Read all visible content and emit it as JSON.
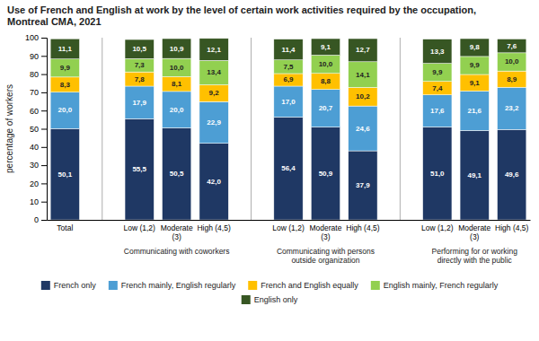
{
  "chart_data": {
    "type": "bar",
    "stacked": true,
    "title": "Use of French and English at work by the level of certain work activities required by the occupation,\nMontreal CMA, 2021",
    "ylabel": "percentage of workers",
    "categories": [
      "Total",
      "Low (1,2)",
      "Moderate\n(3)",
      "High (4,5)",
      "Low (1,2)",
      "Moderate\n(3)",
      "High (4,5)",
      "Low (1,2)",
      "Moderate\n(3)",
      "High (4,5)"
    ],
    "group_labels": [
      "Communicating with coworkers",
      "Communicating with persons\noutside organization",
      "Performing for or working\ndirectly with the public"
    ],
    "series": [
      {
        "name": "French only",
        "color": "#1f3864",
        "values": [
          50.1,
          55.5,
          50.5,
          42.0,
          56.4,
          50.9,
          37.9,
          51.0,
          49.1,
          49.6
        ],
        "value_labels": [
          "50,1",
          "55,5",
          "50,5",
          "42,0",
          "56,4",
          "50,9",
          "37,9",
          "51,0",
          "49,1",
          "49,6"
        ]
      },
      {
        "name": "French mainly, English regularly",
        "color": "#4d9ed4",
        "values": [
          20.0,
          17.9,
          20.0,
          22.9,
          17.0,
          20.7,
          24.6,
          17.6,
          21.6,
          23.2
        ],
        "value_labels": [
          "20,0",
          "17,9",
          "20,0",
          "22,9",
          "17,0",
          "20,7",
          "24,6",
          "17,6",
          "21,6",
          "23,2"
        ]
      },
      {
        "name": "French and English equally",
        "color": "#ffc000",
        "values": [
          8.3,
          7.8,
          8.1,
          9.2,
          6.9,
          8.8,
          10.2,
          7.4,
          9.1,
          8.9
        ],
        "value_labels": [
          "8,3",
          "7,8",
          "8,1",
          "9,2",
          "6,9",
          "8,8",
          "10,2",
          "7,4",
          "9,1",
          "8,9"
        ]
      },
      {
        "name": "English mainly, French regularly",
        "color": "#92d050",
        "values": [
          9.9,
          7.3,
          10.0,
          13.4,
          7.5,
          10.0,
          14.1,
          9.9,
          9.9,
          10.0
        ],
        "value_labels": [
          "9,9",
          "7,3",
          "10,0",
          "13,4",
          "7,5",
          "10,0",
          "14,1",
          "9,9",
          "9,9",
          "10,0"
        ]
      },
      {
        "name": "English only",
        "color": "#375623",
        "values": [
          11.1,
          10.5,
          10.9,
          12.1,
          11.4,
          9.1,
          12.7,
          13.3,
          9.8,
          7.6
        ],
        "value_labels": [
          "11,1",
          "10,5",
          "10,9",
          "12,1",
          "11,4",
          "9,1",
          "12,7",
          "13,3",
          "9,8",
          "7,6"
        ]
      }
    ],
    "data_labels": true,
    "legend": "bottom",
    "ylim": [
      0,
      100
    ],
    "yticks": [
      0,
      10,
      20,
      30,
      40,
      50,
      60,
      70,
      80,
      90,
      100
    ]
  }
}
